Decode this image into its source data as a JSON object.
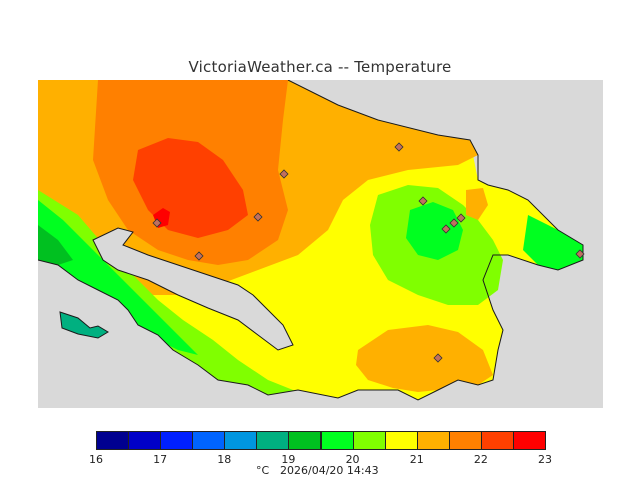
{
  "map": {
    "title": "VictoriaWeather.ca -- Temperature",
    "land_background": "#d9d9d9",
    "coastline_color": "#1a1a1a"
  },
  "zone_colors": {
    "t20_21": "#ffff00",
    "t21_22": "#ffb000",
    "t22_23": "#ff8000",
    "t23_24": "#ff4000",
    "t24_25": "#ff0000",
    "t19_20": "#80ff00",
    "t18_19": "#00ff20",
    "t17_18": "#00c020",
    "t16_17": "#00b080"
  },
  "colorbar": {
    "colors": [
      "#000090",
      "#0000c8",
      "#0020ff",
      "#0064ff",
      "#0096e0",
      "#00b080",
      "#00c020",
      "#00ff20",
      "#80ff00",
      "#ffff00",
      "#ffb000",
      "#ff8000",
      "#ff4000",
      "#ff0000"
    ],
    "ticks": [
      "16",
      "17",
      "18",
      "19",
      "20",
      "21",
      "22",
      "23"
    ],
    "units": "°C",
    "timestamp": "2026/04/20 14:43"
  }
}
